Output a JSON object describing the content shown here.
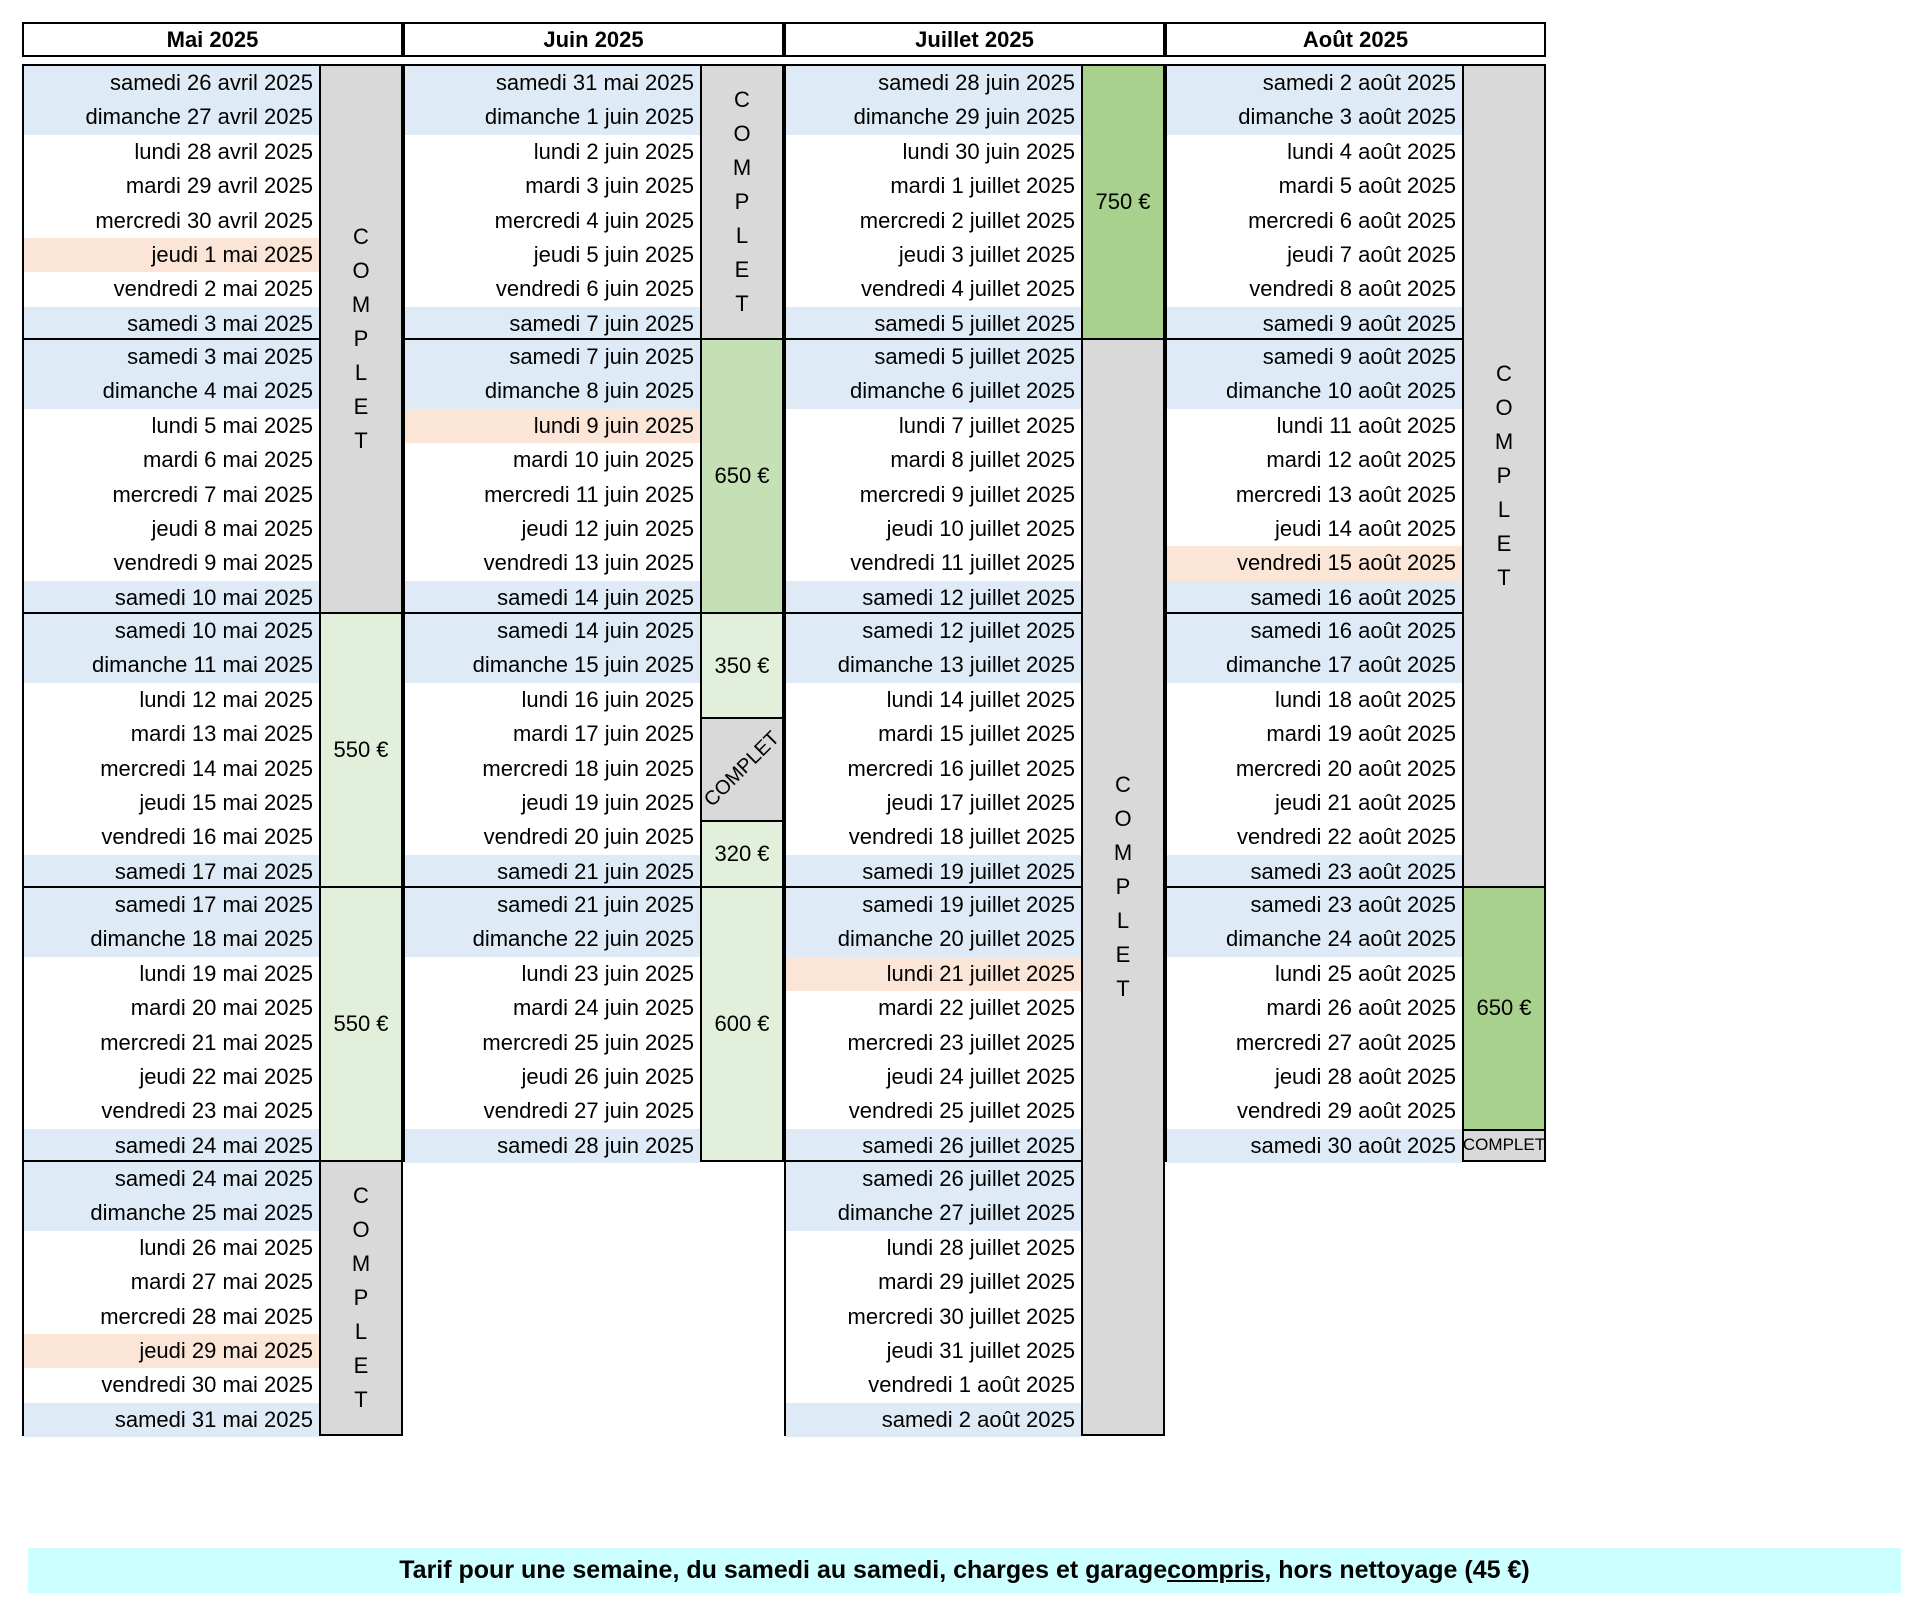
{
  "months": [
    {
      "name": "Mai 2025",
      "weeks": [
        {
          "days": [
            "samedi 26 avril 2025",
            "dimanche 27 avril 2025",
            "lundi 28 avril 2025",
            "mardi 29 avril 2025",
            "mercredi 30 avril 2025",
            "jeudi 1 mai 2025",
            "vendredi 2 mai 2025",
            "samedi 3 mai 2025"
          ],
          "holiday": 5
        },
        {
          "days": [
            "samedi 3 mai 2025",
            "dimanche 4 mai 2025",
            "lundi 5 mai 2025",
            "mardi 6 mai 2025",
            "mercredi 7 mai 2025",
            "jeudi 8 mai 2025",
            "vendredi 9 mai 2025",
            "samedi 10 mai 2025"
          ]
        },
        {
          "days": [
            "samedi 10 mai 2025",
            "dimanche 11 mai 2025",
            "lundi 12 mai 2025",
            "mardi 13 mai 2025",
            "mercredi 14 mai 2025",
            "jeudi 15 mai 2025",
            "vendredi 16 mai 2025",
            "samedi 17 mai 2025"
          ]
        },
        {
          "days": [
            "samedi 17 mai 2025",
            "dimanche 18 mai 2025",
            "lundi 19 mai 2025",
            "mardi 20 mai 2025",
            "mercredi 21 mai 2025",
            "jeudi 22 mai 2025",
            "vendredi 23 mai 2025",
            "samedi 24 mai 2025"
          ]
        },
        {
          "days": [
            "samedi 24 mai 2025",
            "dimanche 25 mai 2025",
            "lundi 26 mai 2025",
            "mardi 27 mai 2025",
            "mercredi 28 mai 2025",
            "jeudi 29 mai 2025",
            "vendredi 30 mai 2025",
            "samedi 31 mai 2025"
          ],
          "holiday": 5
        }
      ],
      "tariffs": [
        {
          "weeks": [
            0,
            1
          ],
          "label": "COMPLET",
          "style": "complet",
          "mode": "vertical"
        },
        {
          "weeks": [
            2
          ],
          "label": "550 €",
          "style": "price-light",
          "mode": "plain"
        },
        {
          "weeks": [
            3
          ],
          "label": "550 €",
          "style": "price-light",
          "mode": "plain"
        },
        {
          "weeks": [
            4
          ],
          "label": "COMPLET",
          "style": "complet",
          "mode": "vertical"
        }
      ]
    },
    {
      "name": "Juin 2025",
      "weeks": [
        {
          "days": [
            "samedi 31 mai 2025",
            "dimanche 1 juin 2025",
            "lundi 2 juin 2025",
            "mardi 3 juin 2025",
            "mercredi 4 juin 2025",
            "jeudi 5 juin 2025",
            "vendredi 6 juin 2025",
            "samedi 7 juin 2025"
          ]
        },
        {
          "days": [
            "samedi 7 juin 2025",
            "dimanche 8 juin 2025",
            "lundi 9 juin 2025",
            "mardi 10 juin 2025",
            "mercredi 11 juin 2025",
            "jeudi 12 juin 2025",
            "vendredi 13 juin 2025",
            "samedi 14 juin 2025"
          ],
          "holiday": 2
        },
        {
          "days": [
            "samedi 14 juin 2025",
            "dimanche 15 juin 2025",
            "lundi 16 juin 2025",
            "mardi 17 juin 2025",
            "mercredi 18 juin 2025",
            "jeudi 19 juin 2025",
            "vendredi 20 juin 2025",
            "samedi 21 juin 2025"
          ]
        },
        {
          "days": [
            "samedi 21 juin 2025",
            "dimanche 22 juin 2025",
            "lundi 23 juin 2025",
            "mardi 24 juin 2025",
            "mercredi 25 juin 2025",
            "jeudi 26 juin 2025",
            "vendredi 27 juin 2025",
            "samedi 28 juin 2025"
          ]
        }
      ],
      "tariffs": [
        {
          "weeks": [
            0
          ],
          "label": "COMPLET",
          "style": "complet",
          "mode": "vertical"
        },
        {
          "weeks": [
            1
          ],
          "label": "650 €",
          "style": "price-mid",
          "mode": "plain"
        },
        {
          "weeks": [
            2
          ],
          "rows": [
            0,
            3
          ],
          "label": "350 €",
          "style": "price-light",
          "mode": "plain"
        },
        {
          "weeks": [
            2
          ],
          "rows": [
            3,
            6
          ],
          "label": "COMPLET",
          "style": "complet",
          "mode": "rotated"
        },
        {
          "weeks": [
            2
          ],
          "rows": [
            6,
            8
          ],
          "label": "320 €",
          "style": "price-light",
          "mode": "plain"
        },
        {
          "weeks": [
            3
          ],
          "label": "600 €",
          "style": "price-light",
          "mode": "plain"
        }
      ]
    },
    {
      "name": "Juillet 2025",
      "weeks": [
        {
          "days": [
            "samedi 28 juin 2025",
            "dimanche 29 juin 2025",
            "lundi 30 juin 2025",
            "mardi 1 juillet 2025",
            "mercredi 2 juillet 2025",
            "jeudi 3 juillet 2025",
            "vendredi 4 juillet 2025",
            "samedi 5 juillet 2025"
          ]
        },
        {
          "days": [
            "samedi 5 juillet 2025",
            "dimanche 6 juillet 2025",
            "lundi 7 juillet 2025",
            "mardi 8 juillet 2025",
            "mercredi 9 juillet 2025",
            "jeudi 10 juillet 2025",
            "vendredi 11 juillet 2025",
            "samedi 12 juillet 2025"
          ]
        },
        {
          "days": [
            "samedi 12 juillet 2025",
            "dimanche 13 juillet 2025",
            "lundi 14 juillet 2025",
            "mardi 15 juillet 2025",
            "mercredi 16 juillet 2025",
            "jeudi 17 juillet 2025",
            "vendredi 18 juillet 2025",
            "samedi 19 juillet 2025"
          ]
        },
        {
          "days": [
            "samedi 19 juillet 2025",
            "dimanche 20 juillet 2025",
            "lundi 21 juillet 2025",
            "mardi 22 juillet 2025",
            "mercredi 23 juillet 2025",
            "jeudi 24 juillet 2025",
            "vendredi 25 juillet 2025",
            "samedi 26 juillet 2025"
          ],
          "holiday": 2
        },
        {
          "days": [
            "samedi 26 juillet 2025",
            "dimanche 27 juillet 2025",
            "lundi 28 juillet 2025",
            "mardi 29 juillet 2025",
            "mercredi 30 juillet 2025",
            "jeudi 31 juillet 2025",
            "vendredi 1 août 2025",
            "samedi 2 août 2025"
          ]
        }
      ],
      "tariffs": [
        {
          "weeks": [
            0
          ],
          "label": "750 €",
          "style": "price-dark",
          "mode": "plain"
        },
        {
          "weeks": [
            1,
            2,
            3,
            4
          ],
          "label": "COMPLET",
          "style": "complet",
          "mode": "vertical"
        }
      ]
    },
    {
      "name": "Août 2025",
      "weeks": [
        {
          "days": [
            "samedi 2 août 2025",
            "dimanche 3 août 2025",
            "lundi 4 août 2025",
            "mardi 5 août 2025",
            "mercredi 6 août 2025",
            "jeudi 7 août 2025",
            "vendredi 8 août 2025",
            "samedi 9 août 2025"
          ]
        },
        {
          "days": [
            "samedi 9 août 2025",
            "dimanche 10 août 2025",
            "lundi 11 août 2025",
            "mardi 12 août 2025",
            "mercredi 13 août 2025",
            "jeudi 14 août 2025",
            "vendredi 15 août 2025",
            "samedi 16 août 2025"
          ],
          "holiday": 6
        },
        {
          "days": [
            "samedi 16 août 2025",
            "dimanche 17 août 2025",
            "lundi 18 août 2025",
            "mardi 19 août 2025",
            "mercredi 20 août 2025",
            "jeudi 21 août 2025",
            "vendredi 22 août 2025",
            "samedi 23 août 2025"
          ]
        },
        {
          "days": [
            "samedi 23 août 2025",
            "dimanche 24 août 2025",
            "lundi 25 août 2025",
            "mardi 26 août 2025",
            "mercredi 27 août 2025",
            "jeudi 28 août 2025",
            "vendredi 29 août 2025",
            "samedi 30 août 2025"
          ]
        }
      ],
      "tariffs": [
        {
          "weeks": [
            0,
            1,
            2
          ],
          "label": "COMPLET",
          "style": "complet",
          "mode": "vertical"
        },
        {
          "weeks": [
            3
          ],
          "rows": [
            0,
            7
          ],
          "label": "650 €",
          "style": "price-dark",
          "mode": "plain"
        },
        {
          "weeks": [
            3
          ],
          "rows": [
            7,
            8
          ],
          "label": "COMPLET",
          "style": "complet",
          "mode": "small"
        }
      ]
    }
  ],
  "footer": {
    "before": "Tarif pour une semaine, du samedi au samedi, charges et garage ",
    "underlined": "compris",
    "after": ", hors nettoyage (45 €)"
  },
  "colors": {
    "weekend": "#deeaf6",
    "holiday": "#fbe5d6",
    "complet": "#d9d9d9",
    "price_dark": "#a9d18e",
    "price_mid": "#c5e0b4",
    "price_light": "#e2efda",
    "footer_bg": "#ccffff"
  }
}
